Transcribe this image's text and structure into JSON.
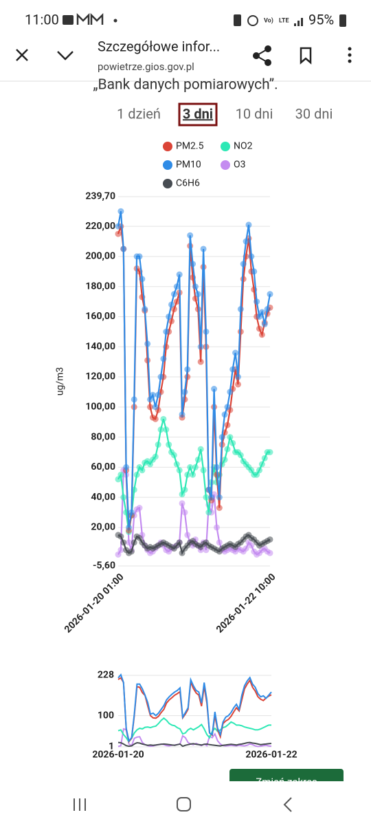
{
  "status_bar": {
    "time": "11:00",
    "battery": "95%"
  },
  "browser_bar": {
    "title": "Szczegółowe infor...",
    "url": "powietrze.gios.gov.pl"
  },
  "page": {
    "intro_text": "„Bank danych pomiarowych”.",
    "tabs": [
      "1 dzień",
      "3 dni",
      "10 dni",
      "30 dni"
    ],
    "selected_tab": 1,
    "button": "Zmień zakres"
  },
  "chart_data": [
    {
      "type": "line",
      "y_label": "ug/m3",
      "categories": [
        "2026-01-20 01:00",
        null,
        null,
        null,
        null,
        null,
        null,
        null,
        null,
        null,
        null,
        null,
        null,
        null,
        null,
        null,
        null,
        null,
        null,
        null,
        null,
        null,
        null,
        null,
        null,
        null,
        null,
        null,
        null,
        null,
        null,
        null,
        null,
        null,
        null,
        null,
        null,
        null,
        null,
        null,
        null,
        null,
        null,
        null,
        null,
        null,
        null,
        null,
        null,
        null,
        null,
        null,
        null,
        null,
        null,
        null,
        null,
        "2026-01-22 10:00"
      ],
      "ylim": [
        -5.6,
        239.7
      ],
      "yticks": [
        {
          "value": -5.6,
          "label": "-5,60"
        },
        {
          "value": 20,
          "label": "20,00"
        },
        {
          "value": 40,
          "label": "40,00"
        },
        {
          "value": 60,
          "label": "60,00"
        },
        {
          "value": 80,
          "label": "80,00"
        },
        {
          "value": 100,
          "label": "100,00"
        },
        {
          "value": 120,
          "label": "120,00"
        },
        {
          "value": 140,
          "label": "140,00"
        },
        {
          "value": 160,
          "label": "160,00"
        },
        {
          "value": 180,
          "label": "180,00"
        },
        {
          "value": 200,
          "label": "200,00"
        },
        {
          "value": 220,
          "label": "220,00"
        },
        {
          "value": 239.7,
          "label": "239,70"
        }
      ],
      "grid": true,
      "series": [
        {
          "name": "PM2.5",
          "color": "#db4437",
          "values": [
            215,
            220,
            205,
            58,
            18,
            28,
            100,
            192,
            190,
            173,
            164,
            131,
            100,
            93,
            92,
            98,
            110,
            120,
            140,
            150,
            157,
            165,
            170,
            176,
            93,
            105,
            120,
            207,
            186,
            172,
            165,
            130,
            193,
            140,
            45,
            38,
            100,
            55,
            33,
            75,
            83,
            88,
            98,
            112,
            125,
            115,
            150,
            185,
            200,
            212,
            190,
            178,
            160,
            152,
            148,
            156,
            162,
            166
          ]
        },
        {
          "name": "NO2",
          "color": "#2de8b5",
          "values": [
            52,
            55,
            40,
            30,
            17,
            28,
            45,
            55,
            60,
            58,
            63,
            64,
            62,
            65,
            67,
            75,
            85,
            92,
            85,
            75,
            70,
            68,
            62,
            58,
            42,
            45,
            55,
            60,
            55,
            60,
            65,
            72,
            58,
            40,
            30,
            50,
            60,
            50,
            55,
            62,
            65,
            72,
            80,
            76,
            70,
            70,
            68,
            64,
            62,
            60,
            58,
            55,
            55,
            58,
            62,
            66,
            70,
            70
          ]
        },
        {
          "name": "PM10",
          "color": "#2f8be6",
          "values": [
            220,
            230,
            205,
            60,
            20,
            30,
            105,
            200,
            200,
            185,
            165,
            142,
            105,
            108,
            100,
            108,
            120,
            132,
            150,
            160,
            168,
            175,
            180,
            188,
            95,
            110,
            125,
            214,
            195,
            180,
            175,
            140,
            205,
            150,
            45,
            40,
            112,
            60,
            40,
            80,
            95,
            100,
            110,
            125,
            136,
            120,
            165,
            195,
            210,
            221,
            200,
            190,
            170,
            160,
            163,
            155,
            165,
            175
          ]
        },
        {
          "name": "O3",
          "color": "#c48cf0",
          "values": [
            2,
            5,
            58,
            55,
            10,
            5,
            28,
            32,
            33,
            15,
            8,
            5,
            3,
            4,
            6,
            8,
            10,
            8,
            5,
            4,
            6,
            7,
            8,
            10,
            36,
            30,
            15,
            10,
            8,
            12,
            8,
            5,
            10,
            5,
            35,
            30,
            42,
            20,
            10,
            5,
            4,
            5,
            6,
            5,
            4,
            6,
            5,
            4,
            6,
            10,
            8,
            4,
            2,
            3,
            5,
            6,
            4,
            3
          ]
        },
        {
          "name": "C6H6",
          "color": "#474c52",
          "values": [
            15,
            14,
            10,
            5,
            3,
            4,
            10,
            14,
            13,
            10,
            8,
            6,
            7,
            6,
            7,
            8,
            9,
            10,
            9,
            8,
            7,
            6,
            8,
            10,
            3,
            6,
            8,
            10,
            11,
            9,
            8,
            7,
            9,
            10,
            8,
            7,
            6,
            5,
            4,
            6,
            7,
            8,
            9,
            8,
            7,
            9,
            10,
            12,
            14,
            15,
            13,
            12,
            10,
            8,
            9,
            10,
            11,
            12
          ]
        }
      ]
    },
    {
      "type": "navigator",
      "x_labels": [
        "2026-01-20",
        "2026-01-22"
      ],
      "ylim": [
        1,
        228
      ],
      "yticks": [
        1,
        100,
        228
      ],
      "grid": true
    }
  ]
}
